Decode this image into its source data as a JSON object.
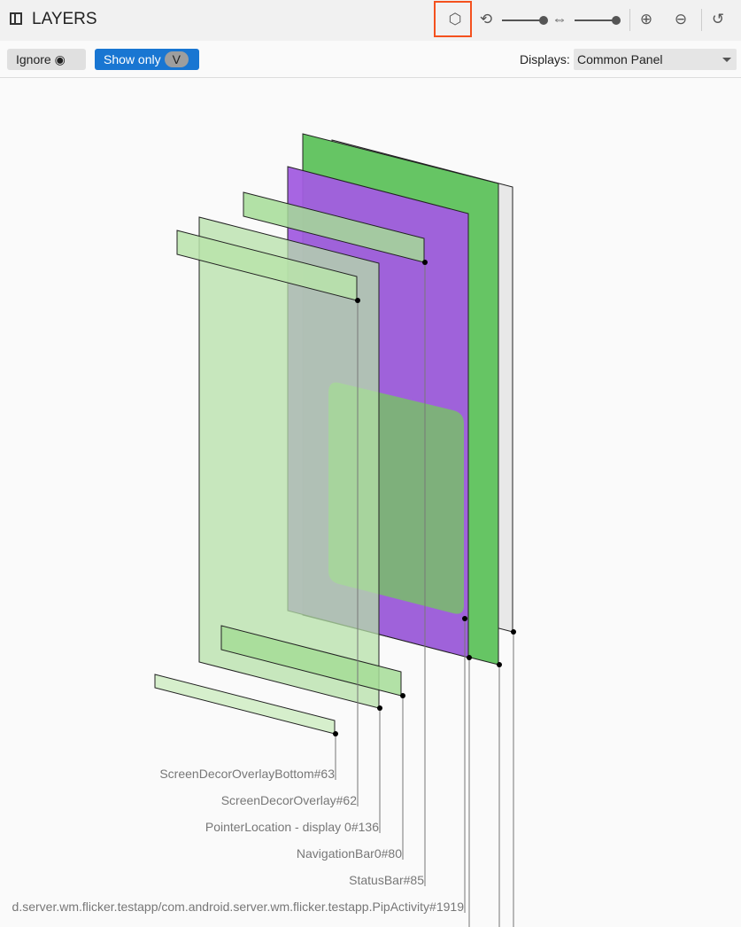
{
  "header": {
    "title": "LAYERS",
    "icons": [
      "sidebar-collapse-icon",
      "3d-cube-icon",
      "rotate-icon",
      "spacing-icon",
      "zoom-in-icon",
      "zoom-out-icon",
      "reset-history-icon"
    ],
    "rotation_slider": 1.0,
    "spacing_slider": 1.0,
    "highlight_color": "#f4511e"
  },
  "filters": {
    "ignore_label": "Ignore",
    "show_only_label": "Show only",
    "show_only_chip": "V",
    "displays_label": "Displays:",
    "displays_value": "Common Panel"
  },
  "layers": [
    {
      "label": "ScreenDecorOverlayBottom#63",
      "color": "#d6efcc"
    },
    {
      "label": "ScreenDecorOverlay#62",
      "color": "#b9e3aa"
    },
    {
      "label": "PointerLocation - display 0#136",
      "color": "#b6e0a8"
    },
    {
      "label": "NavigationBar0#80",
      "color": "#a4dc96"
    },
    {
      "label": "StatusBar#85",
      "color": "#a4dc96"
    },
    {
      "label": "d.server.wm.flicker.testapp/com.android.server.wm.flicker.testapp.PipActivity#1919",
      "color": "#75c463"
    }
  ],
  "accent": {
    "purple": "#a25de0",
    "green": "#66c564"
  }
}
